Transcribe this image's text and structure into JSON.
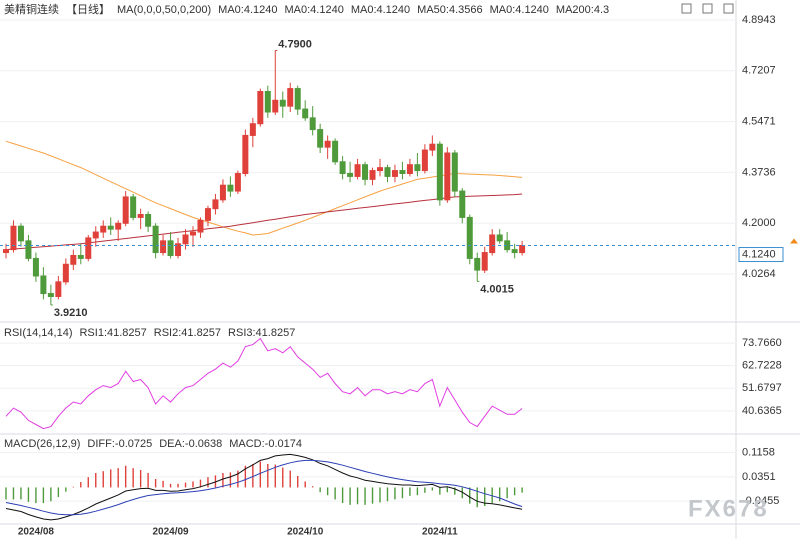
{
  "watermark": "FX678",
  "chart_data": [
    {
      "type": "candlestick",
      "title": "美精铜连续",
      "period": "【日线】",
      "indicator": "MA(0,0,0,50,0,200)",
      "legend_items": [
        {
          "label": "MA0:4.1240",
          "color": "#222222"
        },
        {
          "label": "MA0:4.1240",
          "color": "#2b3fd0"
        },
        {
          "label": "MA0:4.1240",
          "color": "#e040e0"
        },
        {
          "label": "MA50:4.3566",
          "color": "#f08a1c"
        },
        {
          "label": "MA0:4.1240",
          "color": "#888888"
        },
        {
          "label": "MA200:4.3",
          "color": "#e0506a"
        }
      ],
      "up_color": "#e0403a",
      "down_color": "#4f9a3a",
      "open": [
        4.1,
        4.11,
        4.19,
        4.14,
        4.08,
        4.02,
        3.96,
        3.95,
        4.0,
        4.06,
        4.09,
        4.08,
        4.15,
        4.17,
        4.19,
        4.18,
        4.2,
        4.29,
        4.22,
        4.23,
        4.19,
        4.1,
        4.14,
        4.09,
        4.13,
        4.16,
        4.17,
        4.21,
        4.25,
        4.28,
        4.33,
        4.31,
        4.37,
        4.5,
        4.54,
        4.65,
        4.58,
        4.62,
        4.6,
        4.66,
        4.59,
        4.56,
        4.52,
        4.46,
        4.48,
        4.41,
        4.37,
        4.36,
        4.4,
        4.35,
        4.38,
        4.39,
        4.36,
        4.38,
        4.37,
        4.4,
        4.38,
        4.45,
        4.47,
        4.28,
        4.44,
        4.31,
        4.22,
        4.08,
        4.04,
        4.1,
        4.16,
        4.14,
        4.11,
        4.1
      ],
      "high": [
        4.13,
        4.21,
        4.2,
        4.16,
        4.1,
        4.05,
        3.99,
        4.02,
        4.08,
        4.11,
        4.13,
        4.16,
        4.19,
        4.21,
        4.22,
        4.21,
        4.31,
        4.3,
        4.25,
        4.24,
        4.2,
        4.16,
        4.17,
        4.15,
        4.18,
        4.19,
        4.22,
        4.26,
        4.3,
        4.35,
        4.36,
        4.38,
        4.52,
        4.56,
        4.66,
        4.67,
        4.79,
        4.65,
        4.68,
        4.67,
        4.62,
        4.6,
        4.54,
        4.5,
        4.49,
        4.43,
        4.41,
        4.42,
        4.41,
        4.39,
        4.42,
        4.4,
        4.4,
        4.41,
        4.42,
        4.44,
        4.47,
        4.5,
        4.48,
        4.46,
        4.45,
        4.32,
        4.23,
        4.1,
        4.12,
        4.18,
        4.18,
        4.17,
        4.13,
        4.14
      ],
      "low": [
        4.08,
        4.1,
        4.12,
        4.07,
        4.0,
        3.94,
        3.921,
        3.94,
        3.99,
        4.04,
        4.06,
        4.07,
        4.12,
        4.15,
        4.16,
        4.14,
        4.19,
        4.21,
        4.18,
        4.17,
        4.08,
        4.09,
        4.08,
        4.08,
        4.11,
        4.12,
        4.15,
        4.19,
        4.23,
        4.27,
        4.29,
        4.3,
        4.36,
        4.46,
        4.53,
        4.56,
        4.57,
        4.56,
        4.58,
        4.57,
        4.55,
        4.5,
        4.44,
        4.42,
        4.4,
        4.35,
        4.34,
        4.35,
        4.33,
        4.33,
        4.36,
        4.34,
        4.34,
        4.35,
        4.36,
        4.36,
        4.37,
        4.43,
        4.26,
        4.27,
        4.29,
        4.2,
        4.06,
        4.0015,
        4.03,
        4.09,
        4.13,
        4.1,
        4.08,
        4.09
      ],
      "close": [
        4.11,
        4.19,
        4.14,
        4.08,
        4.02,
        3.96,
        3.95,
        4.0,
        4.06,
        4.09,
        4.08,
        4.15,
        4.17,
        4.19,
        4.18,
        4.2,
        4.29,
        4.22,
        4.23,
        4.19,
        4.1,
        4.14,
        4.09,
        4.13,
        4.16,
        4.17,
        4.21,
        4.25,
        4.28,
        4.33,
        4.31,
        4.37,
        4.5,
        4.54,
        4.65,
        4.58,
        4.62,
        4.6,
        4.66,
        4.59,
        4.56,
        4.52,
        4.46,
        4.48,
        4.41,
        4.37,
        4.36,
        4.4,
        4.35,
        4.38,
        4.39,
        4.36,
        4.38,
        4.37,
        4.4,
        4.38,
        4.45,
        4.47,
        4.28,
        4.44,
        4.31,
        4.22,
        4.08,
        4.04,
        4.1,
        4.16,
        4.14,
        4.11,
        4.1,
        4.124
      ],
      "series": [
        {
          "name": "MA50",
          "color": "#f5a142",
          "values": [
            4.48,
            4.472,
            4.464,
            4.456,
            4.448,
            4.44,
            4.43,
            4.42,
            4.41,
            4.4,
            4.39,
            4.378,
            4.366,
            4.354,
            4.342,
            4.33,
            4.318,
            4.306,
            4.294,
            4.282,
            4.27,
            4.26,
            4.25,
            4.24,
            4.23,
            4.22,
            4.212,
            4.204,
            4.196,
            4.188,
            4.18,
            4.173,
            4.167,
            4.16,
            4.162,
            4.165,
            4.174,
            4.183,
            4.192,
            4.201,
            4.21,
            4.22,
            4.23,
            4.24,
            4.25,
            4.26,
            4.27,
            4.28,
            4.29,
            4.3,
            4.31,
            4.318,
            4.326,
            4.334,
            4.342,
            4.35,
            4.354,
            4.358,
            4.362,
            4.366,
            4.37,
            4.369,
            4.368,
            4.367,
            4.366,
            4.365,
            4.363,
            4.361,
            4.359,
            4.3566
          ]
        },
        {
          "name": "MA200",
          "color": "#b8303c",
          "values": [
            4.11,
            4.112,
            4.114,
            4.116,
            4.118,
            4.12,
            4.122,
            4.124,
            4.126,
            4.128,
            4.13,
            4.133,
            4.136,
            4.139,
            4.142,
            4.145,
            4.148,
            4.151,
            4.154,
            4.157,
            4.16,
            4.163,
            4.166,
            4.169,
            4.172,
            4.175,
            4.178,
            4.181,
            4.184,
            4.187,
            4.19,
            4.194,
            4.198,
            4.202,
            4.206,
            4.21,
            4.214,
            4.218,
            4.222,
            4.226,
            4.23,
            4.233,
            4.236,
            4.239,
            4.242,
            4.245,
            4.248,
            4.251,
            4.254,
            4.257,
            4.26,
            4.263,
            4.266,
            4.269,
            4.272,
            4.275,
            4.278,
            4.281,
            4.284,
            4.287,
            4.29,
            4.291,
            4.292,
            4.293,
            4.294,
            4.295,
            4.296,
            4.297,
            4.298,
            4.3
          ]
        }
      ],
      "annotations": [
        {
          "label": "4.7900",
          "value": 4.79,
          "color": "#d9413a"
        },
        {
          "label": "3.9210",
          "value": 3.921,
          "color": "#4f9a3a"
        },
        {
          "label": "4.0015",
          "value": 4.0015,
          "color": "#4f9a3a"
        }
      ],
      "last_price": 4.124,
      "last_price_label": "4.1240",
      "last_price_color": "#3a8fd0",
      "ylim": [
        3.8765,
        4.9454
      ],
      "yticks": [
        4.8943,
        4.7207,
        4.5471,
        4.3736,
        {
          "value": 4.2,
          "label": "4.2000"
        },
        4.0264
      ],
      "grid": true
    },
    {
      "type": "line",
      "title": "RSI(14,14,14)",
      "legend_items": [
        {
          "label": "RSI1:41.8257",
          "color": "#222222"
        },
        {
          "label": "RSI2:41.8257",
          "color": "#2b3fd0"
        },
        {
          "label": "RSI3:41.8257",
          "color": "#e040e0"
        }
      ],
      "series": [
        {
          "name": "RSI",
          "color": "#e23ce2",
          "values": [
            38,
            42,
            40,
            36,
            34,
            32,
            33,
            38,
            42,
            45,
            44,
            48,
            51,
            53,
            52,
            54,
            60,
            55,
            56,
            52,
            44,
            48,
            45,
            49,
            52,
            53,
            56,
            59,
            61,
            64,
            62,
            65,
            72,
            73,
            76,
            70,
            71,
            69,
            72,
            67,
            64,
            61,
            57,
            59,
            54,
            50,
            49,
            52,
            48,
            51,
            51,
            49,
            50,
            49,
            51,
            50,
            54,
            56,
            43,
            52,
            46,
            40,
            35,
            33,
            38,
            43,
            41,
            39,
            39,
            41.8257
          ]
        }
      ],
      "ylim": [
        30.34,
        82.59
      ],
      "yticks": [
        {
          "value": 73.766,
          "label": "73.7660"
        },
        62.7228,
        51.6797,
        40.6365
      ],
      "grid": true
    },
    {
      "type": "macd",
      "title": "MACD(26,12,9)",
      "legend_items": [
        {
          "label": "DIFF:-0.0725",
          "color": "#222222"
        },
        {
          "label": "DEA:-0.0638",
          "color": "#2b3fd0"
        },
        {
          "label": "MACD:-0.0174",
          "color": "#e040e0"
        }
      ],
      "categories": [
        null,
        null,
        null,
        null,
        "2024/08",
        null,
        null,
        null,
        null,
        null,
        null,
        null,
        null,
        null,
        null,
        null,
        null,
        null,
        null,
        null,
        null,
        null,
        "2024/09",
        null,
        null,
        null,
        null,
        null,
        null,
        null,
        null,
        null,
        null,
        null,
        null,
        null,
        null,
        null,
        null,
        null,
        "2024/10",
        null,
        null,
        null,
        null,
        null,
        null,
        null,
        null,
        null,
        null,
        null,
        null,
        null,
        null,
        null,
        null,
        null,
        "2024/11",
        null,
        null,
        null,
        null,
        null,
        null,
        null,
        null,
        null,
        null,
        null
      ],
      "series": [
        {
          "name": "DIFF",
          "color": "#111111",
          "values": [
            -0.07,
            -0.075,
            -0.08,
            -0.09,
            -0.098,
            -0.105,
            -0.108,
            -0.105,
            -0.098,
            -0.09,
            -0.08,
            -0.068,
            -0.055,
            -0.045,
            -0.035,
            -0.025,
            -0.012,
            -0.008,
            -0.004,
            -0.003,
            -0.01,
            -0.01,
            -0.013,
            -0.012,
            -0.008,
            -0.004,
            0.002,
            0.01,
            0.018,
            0.028,
            0.035,
            0.045,
            0.062,
            0.075,
            0.09,
            0.096,
            0.105,
            0.108,
            0.11,
            0.106,
            0.1,
            0.092,
            0.08,
            0.072,
            0.06,
            0.048,
            0.038,
            0.032,
            0.024,
            0.02,
            0.016,
            0.012,
            0.01,
            0.008,
            0.008,
            0.006,
            0.008,
            0.01,
            0.0,
            0.002,
            -0.005,
            -0.016,
            -0.032,
            -0.046,
            -0.052,
            -0.054,
            -0.058,
            -0.063,
            -0.068,
            -0.0725
          ]
        },
        {
          "name": "DEA",
          "color": "#2b3fb5",
          "values": [
            -0.05,
            -0.055,
            -0.06,
            -0.066,
            -0.072,
            -0.079,
            -0.085,
            -0.089,
            -0.091,
            -0.091,
            -0.089,
            -0.085,
            -0.079,
            -0.072,
            -0.065,
            -0.057,
            -0.048,
            -0.04,
            -0.033,
            -0.027,
            -0.024,
            -0.021,
            -0.019,
            -0.018,
            -0.016,
            -0.014,
            -0.011,
            -0.007,
            -0.002,
            0.004,
            0.01,
            0.017,
            0.026,
            0.036,
            0.047,
            0.057,
            0.067,
            0.075,
            0.082,
            0.087,
            0.09,
            0.09,
            0.088,
            0.085,
            0.08,
            0.074,
            0.067,
            0.06,
            0.053,
            0.047,
            0.041,
            0.035,
            0.03,
            0.026,
            0.022,
            0.019,
            0.017,
            0.015,
            0.012,
            0.01,
            0.007,
            0.002,
            -0.005,
            -0.013,
            -0.021,
            -0.028,
            -0.035,
            -0.045,
            -0.055,
            -0.0638
          ]
        }
      ],
      "histogram": {
        "name": "MACD",
        "up_color": "#e0403a",
        "down_color": "#4f9a3a",
        "values": [
          -0.04,
          -0.04,
          -0.04,
          -0.048,
          -0.052,
          -0.052,
          -0.046,
          -0.032,
          -0.014,
          0.002,
          0.018,
          0.034,
          0.048,
          0.054,
          0.06,
          0.064,
          0.072,
          0.064,
          0.058,
          0.048,
          0.028,
          0.022,
          0.012,
          0.012,
          0.016,
          0.02,
          0.026,
          0.034,
          0.04,
          0.048,
          0.05,
          0.056,
          0.072,
          0.078,
          0.086,
          0.078,
          0.076,
          0.066,
          0.056,
          0.038,
          0.02,
          0.004,
          -0.016,
          -0.026,
          -0.04,
          -0.052,
          -0.058,
          -0.056,
          -0.058,
          -0.054,
          -0.05,
          -0.046,
          -0.04,
          -0.036,
          -0.028,
          -0.026,
          -0.018,
          -0.01,
          -0.024,
          -0.016,
          -0.024,
          -0.036,
          -0.054,
          -0.066,
          -0.062,
          -0.052,
          -0.046,
          -0.036,
          -0.026,
          -0.0174
        ]
      },
      "ylim": [
        -0.115,
        0.1578
      ],
      "yticks": [
        0.1158,
        0.0351,
        -0.0455
      ],
      "grid": true
    }
  ]
}
